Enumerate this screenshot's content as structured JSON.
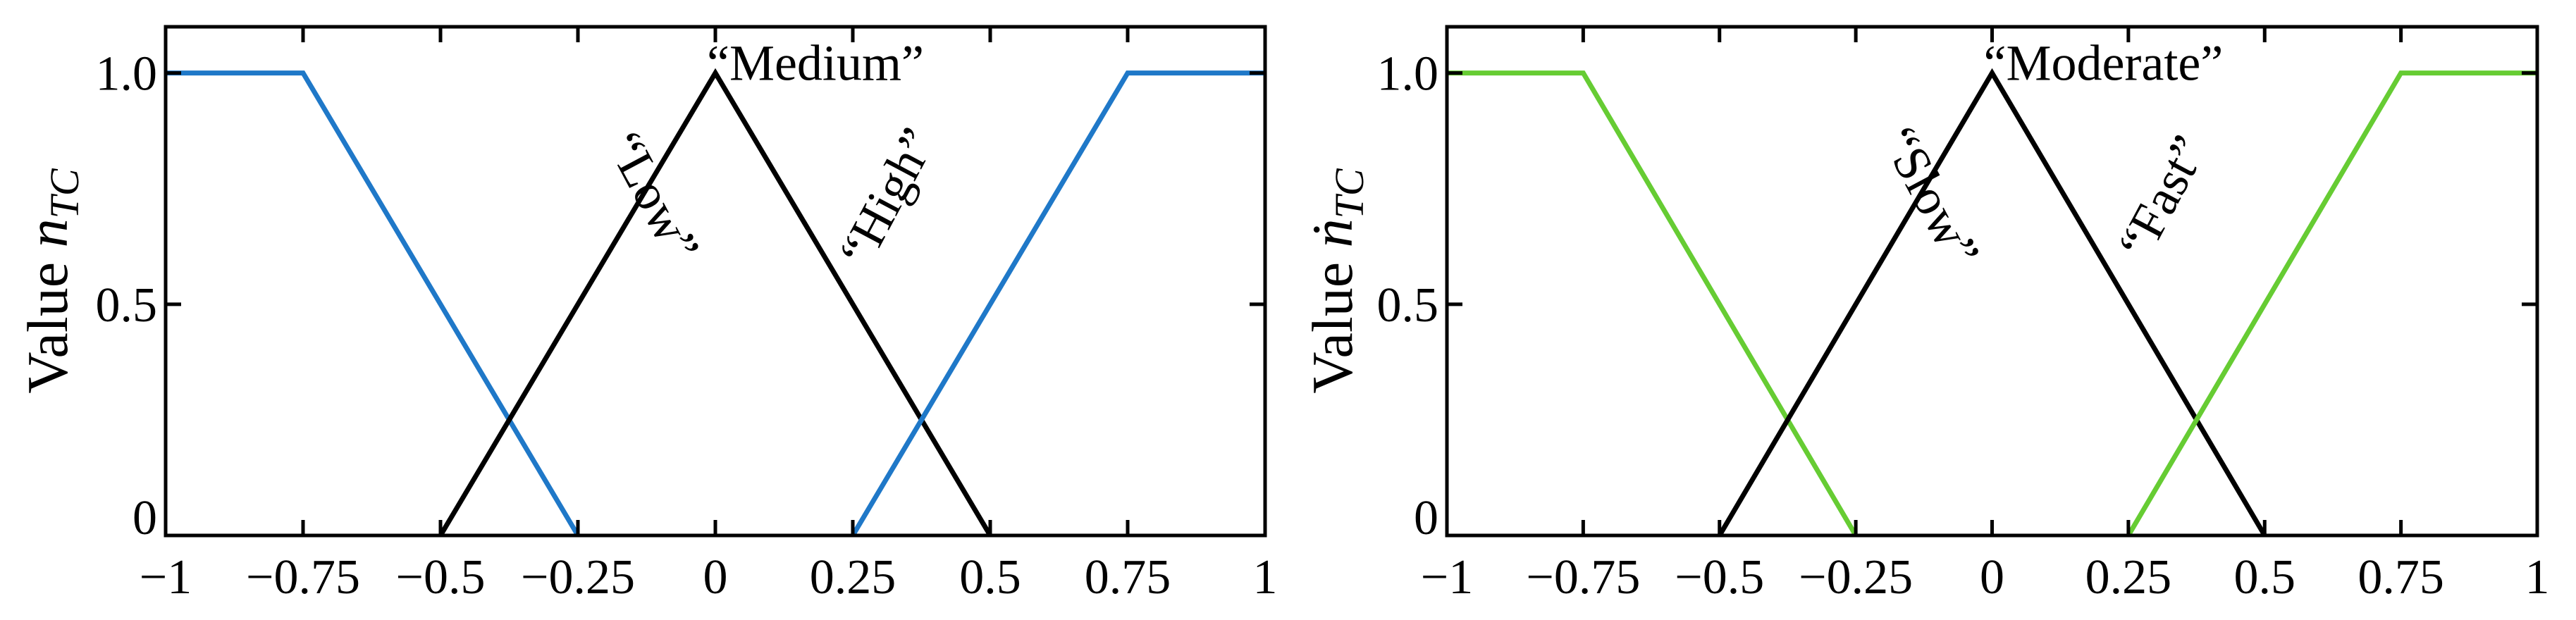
{
  "colors": {
    "axis": "#000000",
    "medium_line": "#000000",
    "left_side_lines": "#1f78c8",
    "right_side_lines": "#66cc33"
  },
  "chart_data": [
    {
      "type": "line",
      "title": "",
      "xlabel": "",
      "ylabel": "Value n",
      "ylabel_subscript": "TC",
      "xlim": [
        -1,
        1
      ],
      "ylim": [
        0,
        1.1
      ],
      "xticks": [
        -1,
        -0.75,
        -0.5,
        -0.25,
        0,
        0.25,
        0.5,
        0.75,
        1
      ],
      "xtick_labels": [
        "−1",
        "−0.75",
        "−0.5",
        "−0.25",
        "0",
        "0.25",
        "0.5",
        "0.75",
        "1"
      ],
      "yticks": [
        0,
        0.5,
        1.0
      ],
      "ytick_labels": [
        "0",
        "0.5",
        "1.0"
      ],
      "grid": false,
      "series": [
        {
          "name": "“Low”",
          "color": "#1f78c8",
          "x": [
            -1,
            -0.75,
            -0.25
          ],
          "y": [
            1,
            1,
            0
          ]
        },
        {
          "name": "“Medium”",
          "color": "#000000",
          "x": [
            -0.5,
            0,
            0.5
          ],
          "y": [
            0,
            1,
            0
          ]
        },
        {
          "name": "“High”",
          "color": "#1f78c8",
          "x": [
            0.25,
            0.75,
            1
          ],
          "y": [
            0,
            1,
            1
          ]
        }
      ]
    },
    {
      "type": "line",
      "title": "",
      "xlabel": "",
      "ylabel": "Value ṅ",
      "ylabel_subscript": "TC",
      "xlim": [
        -1,
        1
      ],
      "ylim": [
        0,
        1.1
      ],
      "xticks": [
        -1,
        -0.75,
        -0.5,
        -0.25,
        0,
        0.25,
        0.5,
        0.75,
        1
      ],
      "xtick_labels": [
        "−1",
        "−0.75",
        "−0.5",
        "−0.25",
        "0",
        "0.25",
        "0.5",
        "0.75",
        "1"
      ],
      "yticks": [
        0,
        0.5,
        1.0
      ],
      "ytick_labels": [
        "0",
        "0.5",
        "1.0"
      ],
      "grid": false,
      "series": [
        {
          "name": "“Slow”",
          "color": "#66cc33",
          "x": [
            -1,
            -0.75,
            -0.25
          ],
          "y": [
            1,
            1,
            0
          ]
        },
        {
          "name": "“Moderate”",
          "color": "#000000",
          "x": [
            -0.5,
            0,
            0.5
          ],
          "y": [
            0,
            1,
            0
          ]
        },
        {
          "name": "“Fast”",
          "color": "#66cc33",
          "x": [
            0.25,
            0.75,
            1
          ],
          "y": [
            0,
            1,
            1
          ]
        }
      ]
    }
  ]
}
